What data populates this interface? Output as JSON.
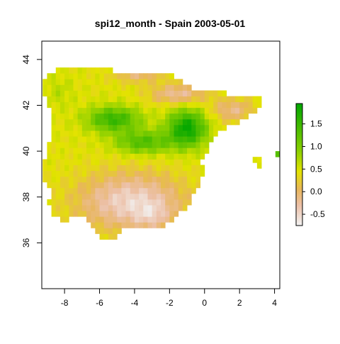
{
  "title": "spi12_month - Spain 2003-05-01",
  "map": {
    "x_range": [
      -9.3,
      4.3
    ],
    "y_range": [
      34.0,
      44.8
    ],
    "x_ticks": [
      -8,
      -6,
      -4,
      -2,
      0,
      2,
      4
    ],
    "y_ticks": [
      36,
      38,
      40,
      42,
      44
    ],
    "grid_step_deg": 0.25
  },
  "legend": {
    "range": [
      -0.75,
      1.95
    ],
    "ticks": [
      -0.5,
      0.0,
      0.5,
      1.0,
      1.5
    ],
    "tick_labels": [
      "-0.5",
      "0.0",
      "0.5",
      "1.0",
      "1.5"
    ],
    "color_stops": [
      {
        "value": -0.75,
        "color": "#f2f2f2"
      },
      {
        "value": -0.3,
        "color": "#ecc0a7"
      },
      {
        "value": 0.05,
        "color": "#e8b65c"
      },
      {
        "value": 0.45,
        "color": "#e3e300"
      },
      {
        "value": 0.9,
        "color": "#8bd000"
      },
      {
        "value": 1.95,
        "color": "#00a600"
      }
    ]
  },
  "colors": {
    "box": "#000000",
    "text": "#000000"
  }
}
